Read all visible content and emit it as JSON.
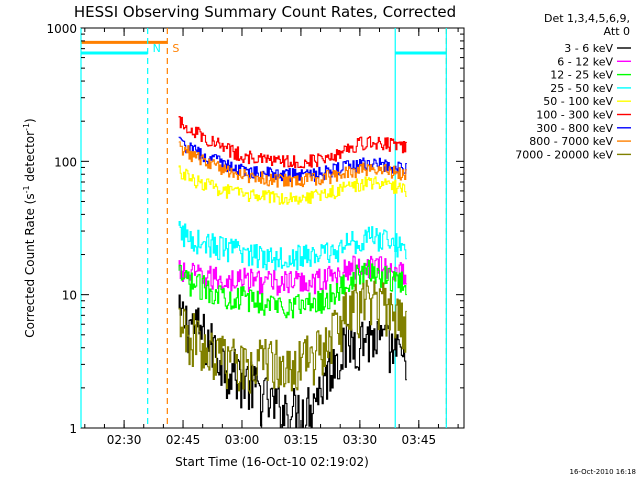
{
  "chart_data": {
    "type": "line",
    "title": "HESSI Observing Summary Count Rates, Corrected",
    "xlabel": "Start Time (16-Oct-10 02:19:02)",
    "ylabel": "Corrected Count Rate (s⁻¹ detector⁻¹)",
    "ylabel_main": "Corrected Count Rate (s",
    "ylabel_sup1": "-1",
    "ylabel_mid": " detector",
    "ylabel_sup2": "-1",
    "ylabel_end": ")",
    "yscale": "log",
    "ylim": [
      1,
      1000
    ],
    "xlim": [
      "02:19:02",
      "03:56:30"
    ],
    "y_tick_labels": [
      "1",
      "10",
      "100",
      "1000"
    ],
    "y_ticks": [
      1,
      10,
      100,
      1000
    ],
    "x_tick_labels": [
      "02:30",
      "02:45",
      "03:00",
      "03:15",
      "03:30",
      "03:45"
    ],
    "x_ticks": [
      "02:30",
      "02:45",
      "03:00",
      "03:15",
      "03:30",
      "03:45"
    ],
    "grid": false,
    "legend_placement": "right",
    "legend_header": [
      "Det 1,3,4,5,6,9,",
      "Att 0"
    ],
    "footer_date": "16-Oct-2010 16:18",
    "x": [
      "02:44",
      "02:48",
      "02:52",
      "02:56",
      "03:00",
      "03:04",
      "03:08",
      "03:12",
      "03:16",
      "03:20",
      "03:24",
      "03:28",
      "03:32",
      "03:36",
      "03:40",
      "03:42"
    ],
    "series": [
      {
        "name": "3 - 6 keV",
        "color": "#000000",
        "values": [
          7,
          6,
          4.5,
          3,
          2.5,
          2,
          1.5,
          1.4,
          1.4,
          2,
          3.5,
          4.5,
          5,
          4.5,
          3.5,
          3
        ]
      },
      {
        "name": "6 - 12 keV",
        "color": "#ff00ff",
        "values": [
          15,
          14,
          13.5,
          13,
          13,
          13,
          12.5,
          12.5,
          12.5,
          13,
          14,
          16,
          17,
          16,
          15,
          14
        ]
      },
      {
        "name": "12 - 25 keV",
        "color": "#00ff00",
        "values": [
          14,
          12,
          11,
          10,
          9.5,
          9,
          8.5,
          8.5,
          8.5,
          9,
          10.5,
          13,
          15,
          14,
          13,
          12
        ]
      },
      {
        "name": "25 - 50 keV",
        "color": "#00ffff",
        "values": [
          30,
          26,
          24,
          22,
          21,
          20,
          19.5,
          19.5,
          19.5,
          20,
          21.5,
          25,
          27,
          26,
          24,
          23
        ]
      },
      {
        "name": "50 - 100 keV",
        "color": "#ffff00",
        "values": [
          85,
          72,
          66,
          60,
          57,
          55,
          54,
          54,
          54,
          56,
          60,
          66,
          69,
          68,
          64,
          62
        ]
      },
      {
        "name": "100 - 300 keV",
        "color": "#ff0000",
        "values": [
          200,
          170,
          145,
          125,
          112,
          104,
          100,
          100,
          100,
          104,
          114,
          130,
          140,
          138,
          130,
          125
        ]
      },
      {
        "name": "300 - 800 keV",
        "color": "#0000ff",
        "values": [
          140,
          120,
          105,
          95,
          88,
          83,
          80,
          79,
          79,
          81,
          86,
          93,
          95,
          94,
          90,
          88
        ]
      },
      {
        "name": "800 - 7000 keV",
        "color": "#ff8000",
        "values": [
          130,
          110,
          96,
          87,
          80,
          76,
          73,
          72,
          72,
          74,
          79,
          85,
          88,
          87,
          83,
          80
        ]
      },
      {
        "name": "7000 - 20000 keV",
        "color": "#808000",
        "values": [
          6,
          5,
          3.8,
          3.4,
          3.3,
          3.3,
          3.3,
          3.3,
          3.4,
          4,
          6,
          8,
          9,
          8.5,
          7,
          6
        ]
      }
    ],
    "annotations": [
      {
        "text": "N",
        "color": "#00ffff",
        "x": "02:36"
      },
      {
        "text": "S",
        "color": "#ff8000",
        "x": "02:41"
      }
    ],
    "markers": {
      "night_bars": [
        {
          "color": "#00ffff",
          "x_start": "02:19:02",
          "x_end": "02:36",
          "y": 650
        },
        {
          "color": "#00ffff",
          "x_start": "03:39",
          "x_end": "03:52",
          "y": 650
        }
      ],
      "saa_bars": [
        {
          "color": "#ff8000",
          "x_start": "02:19:02",
          "x_end": "02:41",
          "y": 780
        }
      ],
      "vlines": [
        {
          "color": "#00ffff",
          "style": "solid",
          "x": "02:19:02"
        },
        {
          "color": "#00ffff",
          "style": "dashed",
          "x": "02:36"
        },
        {
          "color": "#ff8000",
          "style": "dashed",
          "x": "02:41"
        },
        {
          "color": "#00ffff",
          "style": "solid",
          "x": "03:39"
        },
        {
          "color": "#ff8000",
          "style": "dashed",
          "x": "03:52"
        },
        {
          "color": "#00ffff",
          "style": "solid",
          "x": "03:52"
        }
      ]
    }
  }
}
